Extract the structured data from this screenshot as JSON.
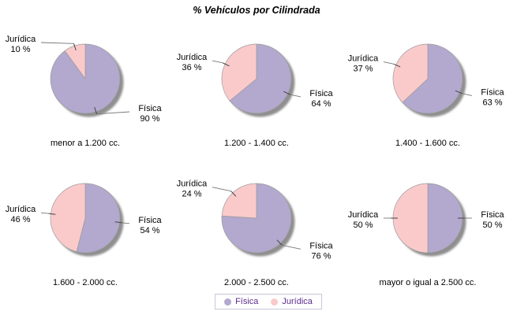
{
  "title": "% Vehículos por Cilindrada",
  "colors": {
    "fisica": "#B3A8CE",
    "juridica": "#FACACA",
    "shadow": "#8F8F8F",
    "slice_border": "#9B9B9B",
    "leader_line": "#777777",
    "tick": "#444444",
    "label_text": "#000000",
    "legend_text": "#5B2D8E",
    "legend_border": "#C6C6D9",
    "background": "#FFFFFF"
  },
  "legend": {
    "items": [
      {
        "label": "Física",
        "color_key": "fisica"
      },
      {
        "label": "Jurídica",
        "color_key": "juridica"
      }
    ]
  },
  "chart_data": {
    "type": "pie",
    "title": "% Vehículos por Cilindrada",
    "series_names": [
      "Física",
      "Jurídica"
    ],
    "value_unit": "%",
    "value_suffix": " %",
    "start_angle_deg": 0,
    "direction": "clockwise",
    "layout": "2 rows x 3 columns of pies",
    "pies": [
      {
        "category": "menor a 1.200 cc.",
        "slices": [
          {
            "name": "Física",
            "value": 90
          },
          {
            "name": "Jurídica",
            "value": 10
          }
        ]
      },
      {
        "category": "1.200 - 1.400 cc.",
        "slices": [
          {
            "name": "Física",
            "value": 64
          },
          {
            "name": "Jurídica",
            "value": 36
          }
        ]
      },
      {
        "category": "1.400 - 1.600 cc.",
        "slices": [
          {
            "name": "Física",
            "value": 63
          },
          {
            "name": "Jurídica",
            "value": 37
          }
        ]
      },
      {
        "category": "1.600 - 2.000 cc.",
        "slices": [
          {
            "name": "Física",
            "value": 54
          },
          {
            "name": "Jurídica",
            "value": 46
          }
        ]
      },
      {
        "category": "2.000 - 2.500 cc.",
        "slices": [
          {
            "name": "Física",
            "value": 76
          },
          {
            "name": "Jurídica",
            "value": 24
          }
        ]
      },
      {
        "category": "mayor o igual a 2.500 cc.",
        "slices": [
          {
            "name": "Física",
            "value": 50
          },
          {
            "name": "Jurídica",
            "value": 50
          }
        ]
      }
    ]
  }
}
